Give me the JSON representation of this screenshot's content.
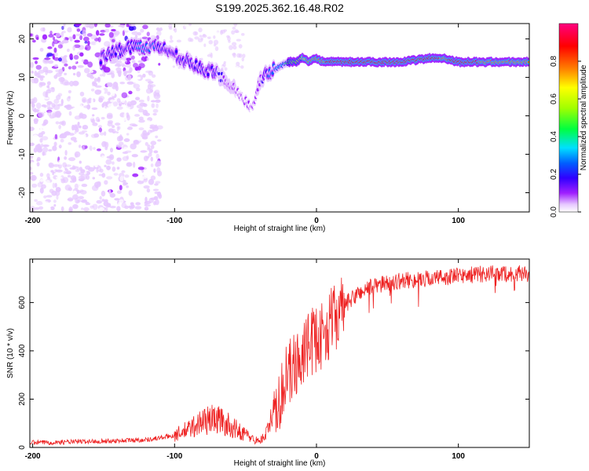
{
  "chart_data": [
    {
      "type": "heatmap",
      "title": "S199.2025.362.16.48.R02",
      "xlabel": "Height of straight line (km)",
      "ylabel": "Frequency (Hz)",
      "xlim": [
        -202,
        150
      ],
      "ylim": [
        -25,
        24
      ],
      "xticks": [
        -200,
        -100,
        0,
        100
      ],
      "yticks": [
        -20,
        -10,
        0,
        10,
        20
      ],
      "colorbar": {
        "label": "Normalized spectral amplitude",
        "range": [
          0,
          1
        ],
        "ticks": [
          0.0,
          0.2,
          0.4,
          0.6,
          0.8
        ],
        "tick_labels": [
          "0.0",
          "0.2",
          "0.4",
          "0.6",
          "0.8"
        ],
        "colormap": [
          "#ffffff",
          "#e6c8ff",
          "#a020ff",
          "#3000ff",
          "#0060ff",
          "#00e0ff",
          "#00ff40",
          "#a0ff00",
          "#ffff00",
          "#ff8000",
          "#ff0000",
          "#ff0080"
        ]
      },
      "ridge": {
        "x": [
          -152,
          -140,
          -130,
          -120,
          -110,
          -100,
          -90,
          -80,
          -70,
          -60,
          -50,
          -45,
          -40,
          -35,
          -30,
          -25,
          -20,
          -15,
          -10,
          -5,
          0,
          5,
          10,
          20,
          40,
          60,
          80,
          90,
          100,
          120,
          150
        ],
        "freq": [
          15,
          17,
          18,
          18,
          18,
          16,
          14,
          12,
          11,
          8,
          4,
          1,
          9,
          11,
          12,
          13,
          14,
          14,
          15,
          14,
          15,
          14,
          14,
          14,
          14,
          14,
          15,
          15,
          14,
          14,
          14
        ],
        "amplitude": [
          0.25,
          0.3,
          0.3,
          0.35,
          0.3,
          0.3,
          0.3,
          0.3,
          0.25,
          0.2,
          0.15,
          0.15,
          0.2,
          0.3,
          0.4,
          0.45,
          0.55,
          0.65,
          0.75,
          0.8,
          0.85,
          0.85,
          0.9,
          0.9,
          0.9,
          0.9,
          0.9,
          0.85,
          0.9,
          0.85,
          0.85
        ]
      }
    },
    {
      "type": "line",
      "xlabel": "Height of straight line (km)",
      "ylabel": "SNR (10 * v/v)",
      "xlim": [
        -202,
        150
      ],
      "ylim": [
        0,
        780
      ],
      "xticks": [
        -200,
        -100,
        0,
        100
      ],
      "yticks": [
        0,
        200,
        400,
        600
      ],
      "series": [
        {
          "name": "SNR",
          "color": "#ee2222",
          "x": [
            -200,
            -180,
            -160,
            -140,
            -120,
            -110,
            -100,
            -90,
            -80,
            -70,
            -60,
            -50,
            -45,
            -40,
            -35,
            -30,
            -25,
            -20,
            -15,
            -10,
            -5,
            0,
            5,
            10,
            15,
            20,
            30,
            40,
            60,
            80,
            100,
            120,
            150
          ],
          "y": [
            20,
            22,
            25,
            28,
            32,
            40,
            50,
            75,
            110,
            120,
            85,
            55,
            35,
            25,
            60,
            140,
            230,
            300,
            340,
            380,
            430,
            450,
            460,
            520,
            550,
            590,
            640,
            670,
            690,
            700,
            710,
            720,
            720
          ]
        }
      ]
    }
  ]
}
